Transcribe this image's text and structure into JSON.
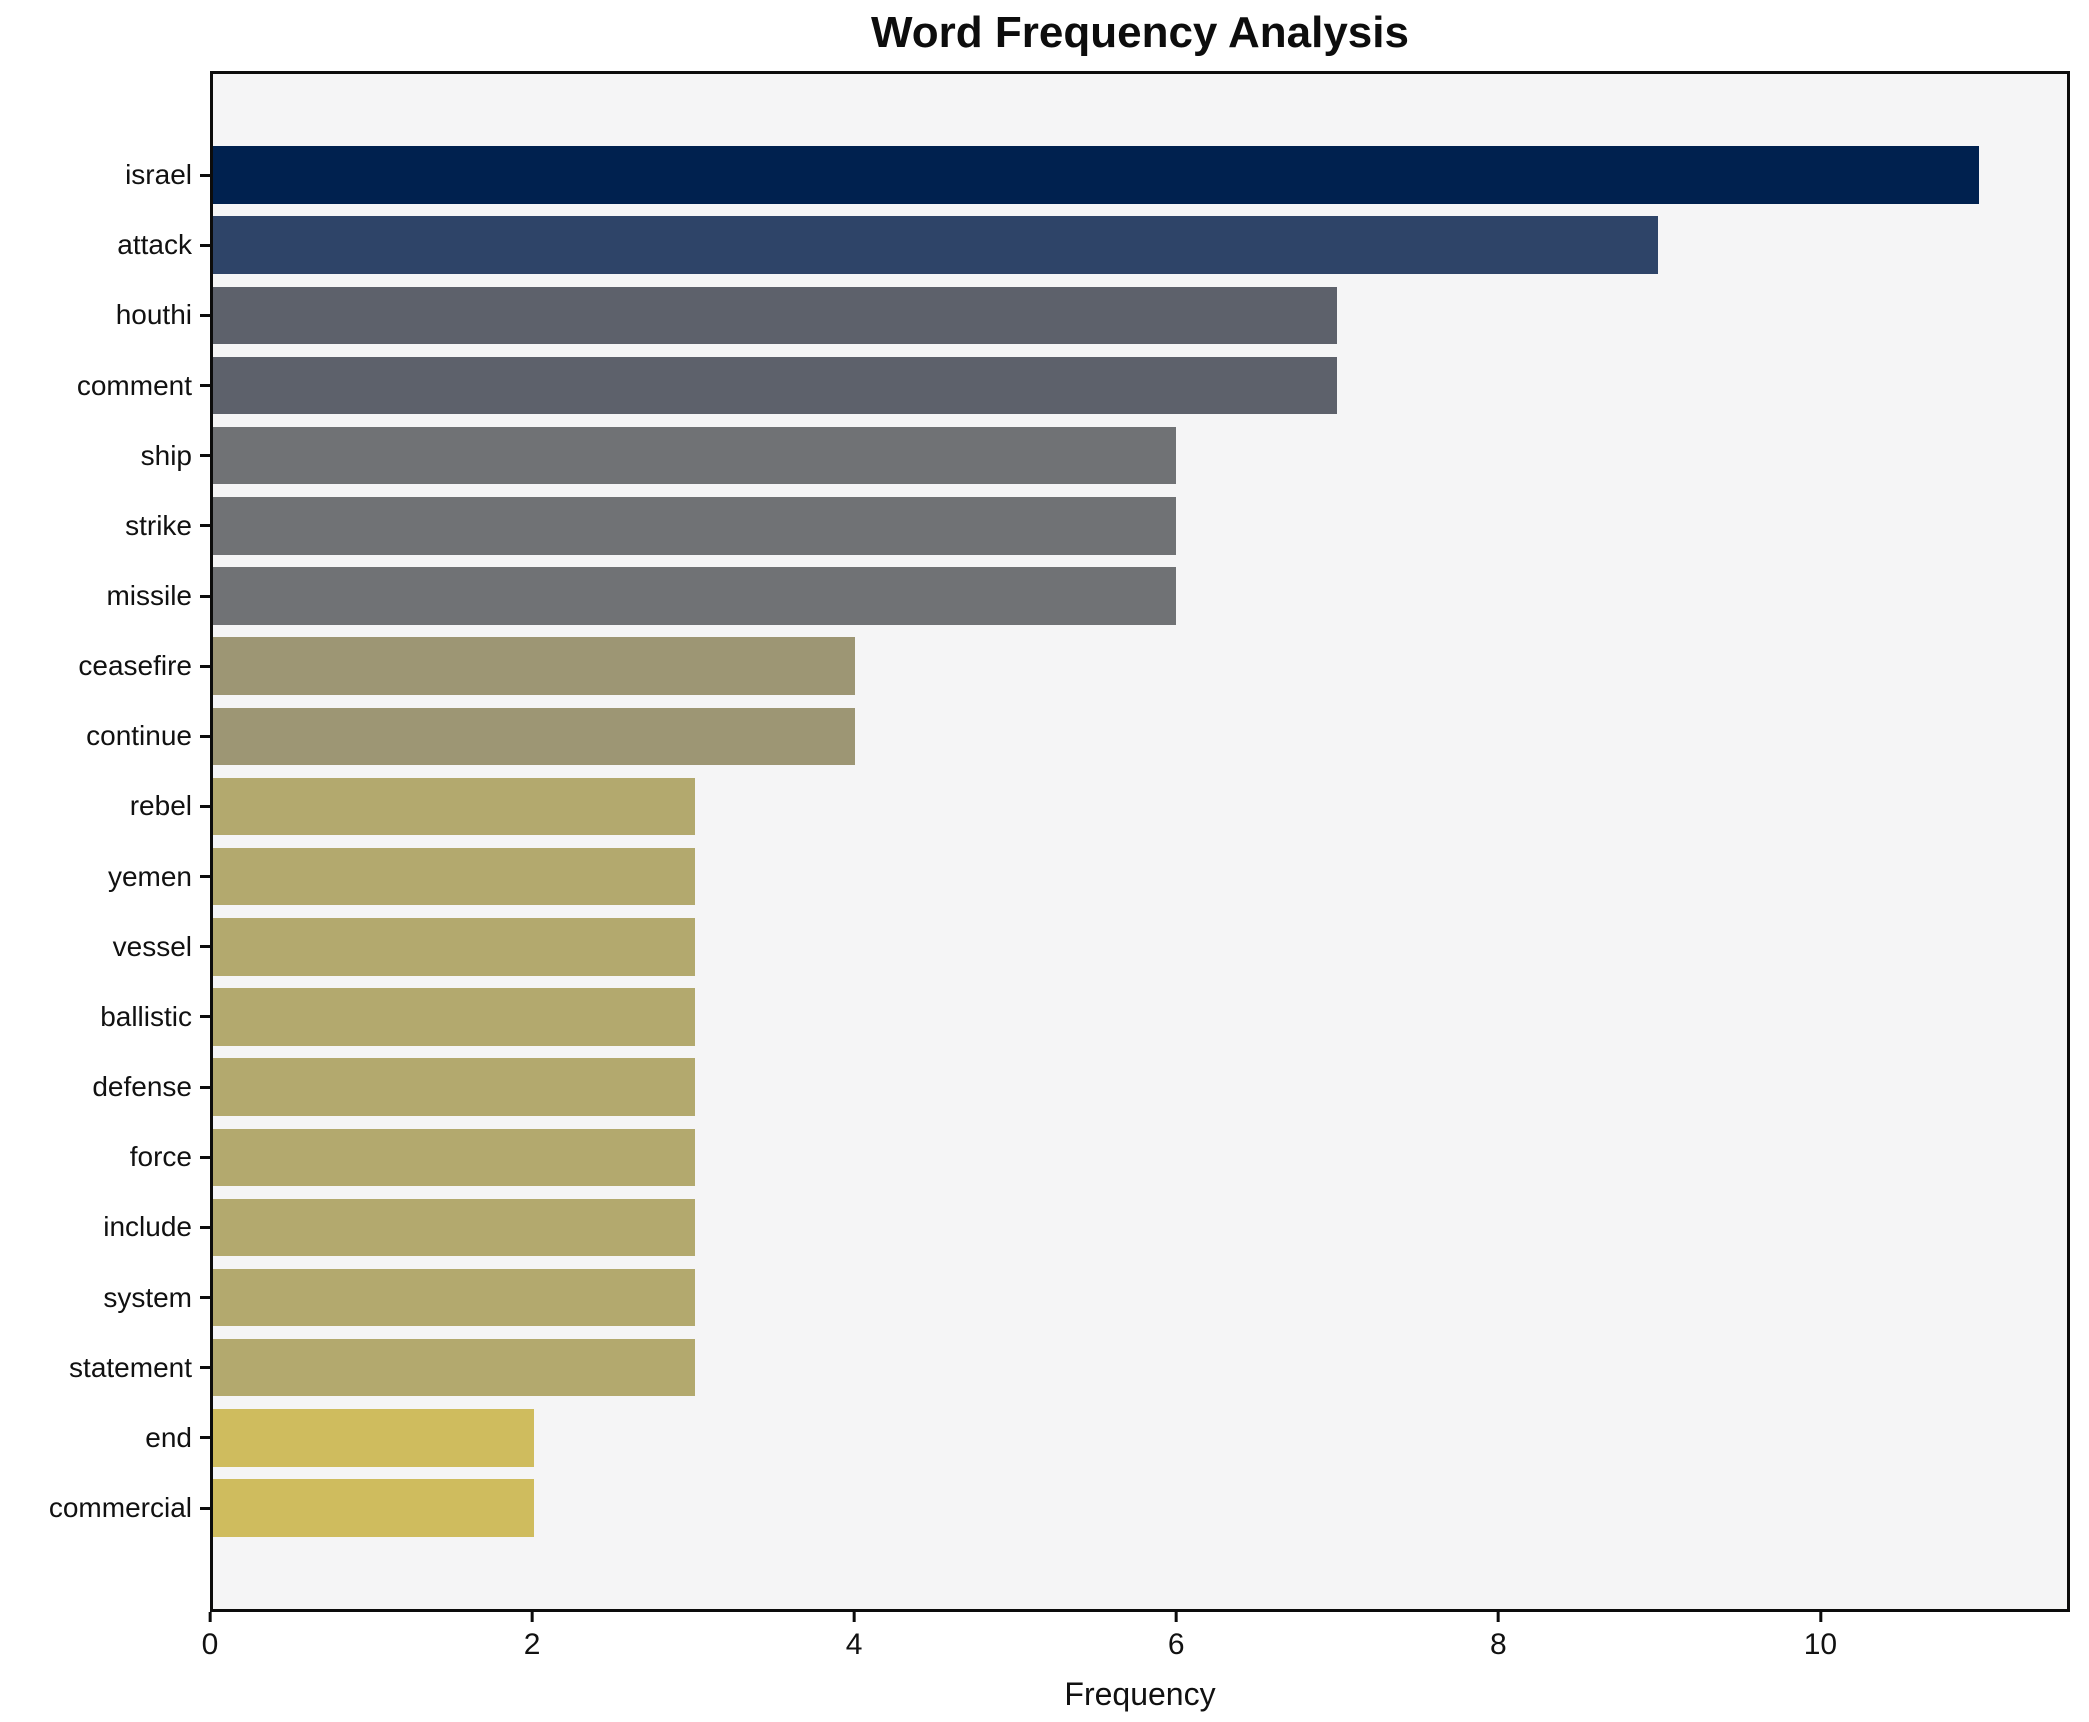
{
  "chart_data": {
    "type": "bar",
    "orientation": "horizontal",
    "title": "Word Frequency Analysis",
    "xlabel": "Frequency",
    "ylabel": "",
    "xlim": [
      0,
      11.55
    ],
    "xticks": [
      0,
      2,
      4,
      6,
      8,
      10
    ],
    "grid": false,
    "legend": false,
    "colors": {
      "figure_background": "#ffffff",
      "axes_background": "#f5f5f6",
      "spine": "#0c0c0c",
      "text": "#111111"
    },
    "categories": [
      "israel",
      "attack",
      "houthi",
      "comment",
      "ship",
      "strike",
      "missile",
      "ceasefire",
      "continue",
      "rebel",
      "yemen",
      "vessel",
      "ballistic",
      "defense",
      "force",
      "include",
      "system",
      "statement",
      "end",
      "commercial"
    ],
    "values": [
      11,
      9,
      7,
      7,
      6,
      6,
      6,
      4,
      4,
      3,
      3,
      3,
      3,
      3,
      3,
      3,
      3,
      3,
      2,
      2
    ],
    "bar_colors": [
      "#00214f",
      "#2e4468",
      "#5d616b",
      "#5d616b",
      "#707275",
      "#707275",
      "#707275",
      "#9d9674",
      "#9d9674",
      "#b3a96e",
      "#b3a96e",
      "#b3a96e",
      "#b3a96e",
      "#b3a96e",
      "#b3a96e",
      "#b3a96e",
      "#b3a96e",
      "#b3a96e",
      "#cfbc5e",
      "#cfbc5e"
    ]
  }
}
